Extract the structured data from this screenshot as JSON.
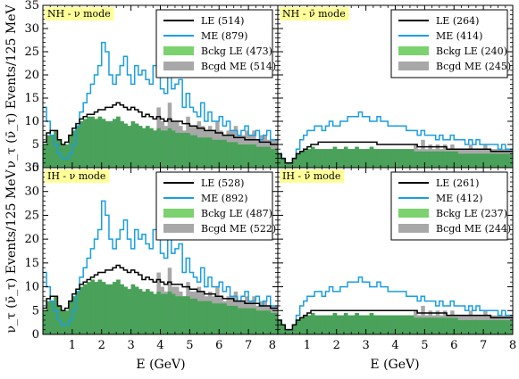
{
  "chart_data": {
    "type": "bar",
    "xlabel": "E (GeV)",
    "ylabel": "ν_τ (ν̄_τ) Events/125 MeV",
    "xlim": [
      0,
      8
    ],
    "ylim": [
      0,
      35
    ],
    "x_ticks": [
      "1",
      "2",
      "3",
      "4",
      "5",
      "6",
      "7",
      "8"
    ],
    "y_ticks": [
      "0",
      "5",
      "10",
      "15",
      "20",
      "25",
      "30",
      "35"
    ],
    "bin_width_gev": 0.125,
    "panels": [
      {
        "mode_label": "NH - ν mode",
        "legend": [
          {
            "label": "LE (514)"
          },
          {
            "label": "ME (879)"
          },
          {
            "label": "Bckg LE (473)"
          },
          {
            "label": "Bcgd ME (514)"
          }
        ],
        "series": {
          "le": [
            5.5,
            7.5,
            8,
            8,
            6,
            5,
            5.5,
            7,
            8.5,
            9.5,
            10.5,
            11,
            11.5,
            11.5,
            12,
            12.5,
            12.5,
            13,
            13,
            13.5,
            14,
            13.5,
            13,
            12.5,
            13,
            12.5,
            12,
            11,
            11.5,
            11,
            10.5,
            11,
            10.5,
            10,
            10.5,
            10,
            10,
            10,
            9.5,
            9.5,
            9,
            9,
            8.5,
            8.5,
            8,
            8,
            8,
            7.5,
            7.5,
            7,
            7,
            7,
            6.5,
            6.5,
            6.5,
            6,
            6,
            6,
            6,
            5.5,
            5.5,
            5.5,
            5,
            5
          ],
          "me": [
            13,
            10,
            7,
            5,
            3,
            2,
            2,
            3,
            5,
            9,
            12,
            14,
            16,
            18,
            20,
            22,
            27,
            25,
            20,
            18,
            20,
            22,
            24,
            20,
            18,
            22,
            20,
            21,
            19,
            18,
            22,
            20,
            17,
            16,
            21,
            17,
            18,
            19,
            13,
            16,
            13,
            12,
            11,
            14,
            10,
            12,
            10,
            10,
            11,
            9,
            10,
            8,
            8,
            7,
            8,
            9,
            7,
            7,
            8,
            6,
            7,
            8,
            6,
            6
          ],
          "bckg_le": [
            5,
            7,
            7,
            8,
            6,
            5,
            5,
            7,
            8,
            9,
            10,
            10.5,
            11,
            11,
            10.5,
            11,
            10.5,
            10,
            10,
            10.5,
            11,
            10,
            9.5,
            9,
            10,
            9.5,
            9,
            8.5,
            9,
            8.5,
            8,
            8.5,
            8,
            8,
            8.5,
            8,
            7.5,
            7.5,
            7.5,
            7.5,
            7,
            7,
            6.5,
            6.5,
            6.5,
            6.5,
            6,
            6,
            6,
            6,
            5.5,
            5.5,
            5.5,
            5,
            5,
            5,
            5,
            5,
            4.5,
            4.5,
            4.5,
            4.5,
            4,
            4
          ],
          "bcgd_me": [
            5,
            7,
            7,
            8,
            6,
            5,
            5,
            7,
            8,
            9,
            10,
            10.5,
            11,
            11,
            10.5,
            11,
            10.5,
            10,
            10,
            10.5,
            11,
            10,
            9.5,
            9,
            10,
            9.5,
            9,
            8.5,
            9,
            8.5,
            8,
            13,
            10,
            9,
            14,
            10,
            10,
            9,
            8,
            11,
            9,
            9,
            10,
            9,
            8,
            9,
            8,
            10,
            8,
            7,
            8,
            8,
            9,
            7,
            7,
            8,
            7,
            8,
            6,
            7,
            7,
            6,
            6,
            6
          ]
        }
      },
      {
        "mode_label": "NH - ν̄ mode",
        "legend": [
          {
            "label": "LE (264)"
          },
          {
            "label": "ME (414)"
          },
          {
            "label": "Bckg LE (240)"
          },
          {
            "label": "Bcgd ME (245)"
          }
        ],
        "series": {
          "le": [
            3,
            2,
            1,
            1,
            2,
            3,
            3.5,
            4,
            4.5,
            5,
            5,
            5.5,
            5.5,
            5.5,
            5.5,
            5.5,
            5.5,
            5.5,
            5.5,
            5.5,
            5.5,
            5.5,
            5.5,
            5.5,
            5.5,
            5.5,
            5.5,
            5,
            5,
            5,
            5,
            5,
            5,
            5,
            5,
            5,
            5,
            5,
            4.5,
            4.5,
            4.5,
            4.5,
            4.5,
            4.5,
            4.5,
            4.5,
            4,
            4,
            4,
            4,
            4,
            4,
            4,
            4,
            4,
            4,
            4,
            4,
            3.5,
            3.5,
            3.5,
            3.5,
            3.5,
            3.5
          ],
          "me": [
            3,
            2,
            1,
            1,
            2,
            4,
            6,
            7,
            8,
            8,
            9,
            9,
            8,
            9,
            10,
            9,
            9,
            10,
            10,
            11,
            11,
            11,
            12,
            11,
            11,
            10,
            10,
            11,
            10,
            10,
            9,
            9,
            9,
            9,
            9,
            8,
            8,
            8,
            7,
            8,
            7,
            7,
            7,
            6,
            7,
            6,
            6,
            7,
            6,
            6,
            6,
            5,
            6,
            5,
            6,
            5,
            5,
            5,
            5,
            5,
            4,
            5,
            4,
            4
          ],
          "bckg_le": [
            3,
            2,
            1,
            1,
            2,
            3,
            3.5,
            4,
            4,
            4.5,
            4,
            4,
            4,
            4,
            4,
            4.5,
            4,
            4,
            4.5,
            4,
            4,
            4.5,
            4,
            4,
            4,
            4.5,
            4,
            4,
            4,
            4,
            4,
            4,
            4,
            4,
            4,
            4,
            4,
            3.5,
            3.5,
            3.5,
            3.5,
            3.5,
            3.5,
            3.5,
            3.5,
            3.5,
            3.5,
            3.5,
            3.5,
            3,
            3,
            3,
            3,
            3,
            3,
            3,
            3,
            3,
            3,
            3,
            3,
            3,
            3,
            3
          ],
          "bcgd_me": [
            3,
            2,
            1,
            1,
            2,
            3,
            3.5,
            4,
            4,
            4.5,
            4,
            4,
            4,
            4,
            4,
            4.5,
            4,
            4,
            4.5,
            4,
            4,
            4.5,
            4,
            4,
            4,
            4.5,
            4,
            4,
            4,
            4,
            4,
            4,
            4,
            4,
            4,
            4,
            4,
            5,
            4,
            6,
            4,
            5,
            4,
            5,
            4,
            5,
            4,
            5,
            4,
            4,
            4,
            4,
            5,
            4,
            4,
            4,
            5,
            4,
            4,
            4,
            4,
            4,
            4,
            4
          ]
        }
      },
      {
        "mode_label": "IH - ν mode",
        "legend": [
          {
            "label": "LE (528)"
          },
          {
            "label": "ME (892)"
          },
          {
            "label": "Bckg LE (487)"
          },
          {
            "label": "Bcgd ME (522)"
          }
        ],
        "series": {
          "le": [
            5.5,
            7.5,
            8,
            8,
            6,
            5,
            5.5,
            7,
            8.5,
            9.5,
            10.5,
            11,
            11.5,
            12,
            12.5,
            13,
            13,
            13.5,
            13.5,
            14,
            14.5,
            14,
            13.5,
            13,
            13.5,
            13,
            12.5,
            11.5,
            12,
            11.5,
            11,
            11.5,
            11,
            10.5,
            11,
            10.5,
            10.5,
            10.5,
            10,
            10,
            9.5,
            9.5,
            9,
            9,
            8.5,
            8.5,
            8.5,
            8,
            8,
            7.5,
            7.5,
            7.5,
            7,
            7,
            7,
            6.5,
            6.5,
            6.5,
            6.5,
            6,
            6,
            6,
            5.5,
            5.5
          ],
          "me": [
            13,
            10,
            7,
            5,
            3,
            2,
            2,
            3,
            5,
            9,
            12,
            14,
            16,
            18,
            20,
            22,
            28,
            25,
            20,
            18,
            20,
            22,
            24,
            20,
            18,
            22,
            20,
            21,
            19,
            18,
            22,
            20,
            17,
            16,
            21,
            17,
            18,
            19,
            13,
            16,
            13,
            12,
            11,
            14,
            10,
            12,
            10,
            10,
            11,
            9,
            10,
            8,
            8,
            7,
            8,
            9,
            7,
            7,
            8,
            6,
            7,
            8,
            6,
            6
          ],
          "bckg_le": [
            5,
            7,
            7,
            8,
            6,
            5,
            5,
            7,
            8,
            9,
            10,
            10.5,
            11,
            11.5,
            11,
            11.5,
            11,
            10.5,
            10.5,
            11,
            11.5,
            10.5,
            10,
            9.5,
            10.5,
            10,
            9.5,
            9,
            9.5,
            9,
            8.5,
            9,
            8.5,
            8.5,
            9,
            8.5,
            8,
            8,
            8,
            8,
            7.5,
            7.5,
            7,
            7,
            7,
            7,
            6.5,
            6.5,
            6.5,
            6.5,
            6,
            6,
            6,
            5.5,
            5.5,
            5.5,
            5.5,
            5.5,
            5,
            5,
            5,
            5,
            4.5,
            4.5
          ],
          "bcgd_me": [
            5,
            7,
            7,
            8,
            6,
            5,
            5,
            7,
            8,
            9,
            10,
            10.5,
            11,
            11.5,
            11,
            11.5,
            11,
            10.5,
            10.5,
            11,
            11.5,
            10.5,
            10,
            9.5,
            10.5,
            10,
            9.5,
            9,
            9.5,
            9,
            8.5,
            13,
            10,
            9,
            14,
            10,
            10,
            9,
            8,
            11,
            9,
            9,
            10,
            9,
            8,
            9,
            8,
            10,
            8,
            7,
            8,
            8,
            9,
            7,
            7,
            8,
            7,
            8,
            6,
            7,
            7,
            6,
            6,
            6
          ]
        }
      },
      {
        "mode_label": "IH - ν̄ mode",
        "legend": [
          {
            "label": "LE (261)"
          },
          {
            "label": "ME (412)"
          },
          {
            "label": "Bckg LE (237)"
          },
          {
            "label": "Bcgd ME (244)"
          }
        ],
        "series": {
          "le": [
            3,
            2,
            1,
            1,
            2,
            3,
            3.5,
            4,
            4.5,
            5,
            5,
            5,
            5,
            5,
            5,
            5,
            5,
            5,
            5,
            5,
            5,
            5,
            5,
            5,
            5,
            5,
            5,
            5,
            5,
            5,
            5,
            5,
            5,
            5,
            5,
            5,
            5,
            5,
            4.5,
            4.5,
            4.5,
            4.5,
            4.5,
            4.5,
            4.5,
            4.5,
            4,
            4,
            4,
            4,
            4,
            4,
            4,
            4,
            4,
            4,
            4,
            4,
            3.5,
            3.5,
            3.5,
            3.5,
            3.5,
            3.5
          ],
          "me": [
            3,
            2,
            1,
            1,
            2,
            4,
            6,
            7,
            8,
            8,
            9,
            9,
            8,
            9,
            10,
            9,
            9,
            10,
            10,
            11,
            11,
            11,
            12,
            11,
            11,
            10,
            10,
            11,
            10,
            10,
            9,
            9,
            9,
            9,
            9,
            8,
            8,
            8,
            7,
            8,
            7,
            7,
            7,
            6,
            7,
            6,
            6,
            7,
            6,
            6,
            6,
            5,
            6,
            5,
            6,
            5,
            5,
            5,
            5,
            5,
            4,
            5,
            4,
            4
          ],
          "bckg_le": [
            3,
            2,
            1,
            1,
            2,
            3,
            3.5,
            4,
            4,
            4.5,
            4,
            4,
            4,
            4,
            4,
            4.5,
            4,
            4,
            4.5,
            4,
            4,
            4.5,
            4,
            4,
            4,
            4.5,
            4,
            4,
            4,
            4,
            4,
            4,
            4,
            4,
            4,
            4,
            4,
            3.5,
            3.5,
            3.5,
            3.5,
            3.5,
            3.5,
            3.5,
            3.5,
            3.5,
            3.5,
            3.5,
            3.5,
            3,
            3,
            3,
            3,
            3,
            3,
            3,
            3,
            3,
            3,
            3,
            3,
            3,
            3,
            3
          ],
          "bcgd_me": [
            3,
            2,
            1,
            1,
            2,
            3,
            3.5,
            4,
            4,
            4.5,
            4,
            4,
            4,
            4,
            4,
            4.5,
            4,
            4,
            4.5,
            4,
            4,
            4.5,
            4,
            4,
            4,
            4.5,
            4,
            4,
            4,
            4,
            4,
            4,
            4,
            4,
            4,
            4,
            4,
            5,
            4,
            6,
            4,
            5,
            4,
            5,
            4,
            5,
            4,
            5,
            4,
            4,
            4,
            4,
            5,
            4,
            4,
            4,
            5,
            4,
            4,
            4,
            4,
            4,
            4,
            4
          ]
        }
      }
    ]
  },
  "colors": {
    "le": "#000000",
    "me": "#1a9ee0",
    "bckg_le": "#7bd26e",
    "bcgd_me": "#a8a8a8",
    "overlap": "#4aa15a",
    "mode_label_bg": "#ffff99"
  }
}
